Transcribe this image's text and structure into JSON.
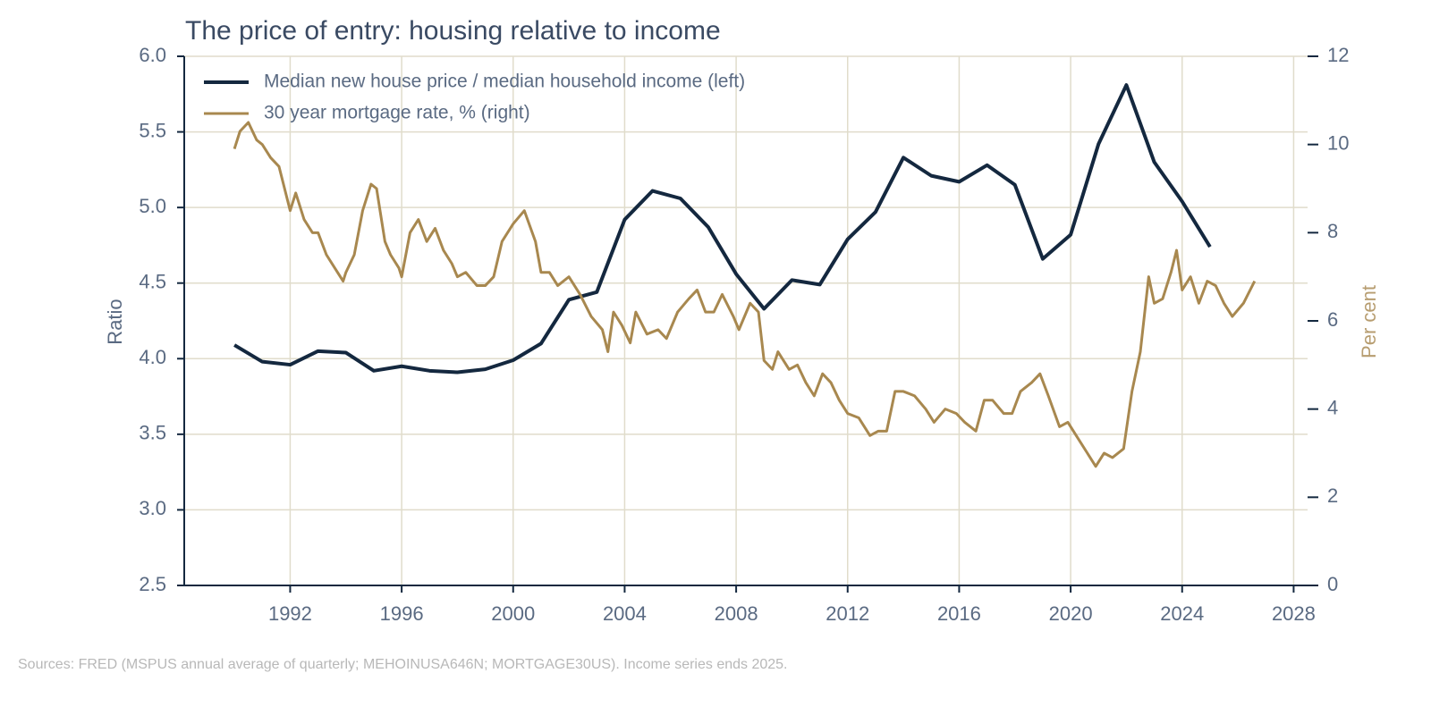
{
  "chart_data": {
    "type": "line",
    "title": "The price of entry: housing relative to income",
    "ylabel": "Ratio",
    "y2label": "Per cent",
    "footnote": "Sources: FRED (MSPUS annual average of quarterly; MEHOINUSA646N; MORTGAGE30US). Income series ends 2025.",
    "xlim": [
      1988.2,
      2028.5
    ],
    "xticks": [
      1992,
      1996,
      2000,
      2004,
      2008,
      2012,
      2016,
      2020,
      2024,
      2028
    ],
    "ylim": [
      2.5,
      6.0
    ],
    "yticks": [
      {
        "value": 2.5,
        "label": "2.5"
      },
      {
        "value": 3.0,
        "label": "3.0"
      },
      {
        "value": 3.5,
        "label": "3.5"
      },
      {
        "value": 4.0,
        "label": "4.0"
      },
      {
        "value": 4.5,
        "label": "4.5"
      },
      {
        "value": 5.0,
        "label": "5.0"
      },
      {
        "value": 5.5,
        "label": "5.5"
      },
      {
        "value": 6.0,
        "label": "6.0"
      }
    ],
    "y2lim": [
      0,
      12
    ],
    "y2ticks": [
      0,
      2,
      4,
      6,
      8,
      10,
      12
    ],
    "grid": true,
    "legend": "upper left",
    "series": [
      {
        "name": "Median new house price / median household income (left)",
        "color": "#14283f",
        "axis": "y",
        "x": [
          1990,
          1991,
          1992,
          1993,
          1994,
          1995,
          1996,
          1997,
          1998,
          1999,
          2000,
          2001,
          2002,
          2003,
          2004,
          2005,
          2006,
          2007,
          2008,
          2009,
          2010,
          2011,
          2012,
          2013,
          2014,
          2015,
          2016,
          2017,
          2018,
          2019,
          2020,
          2021,
          2022,
          2023,
          2024,
          2025
        ],
        "values": [
          4.09,
          3.98,
          3.96,
          4.05,
          4.04,
          3.92,
          3.95,
          3.92,
          3.91,
          3.93,
          3.99,
          4.1,
          4.39,
          4.44,
          4.92,
          5.11,
          5.06,
          4.87,
          4.56,
          4.33,
          4.52,
          4.49,
          4.79,
          4.97,
          5.33,
          5.21,
          5.17,
          5.28,
          5.15,
          4.66,
          4.82,
          5.42,
          5.81,
          5.3,
          5.04,
          4.74
        ]
      },
      {
        "name": "30 year mortgage rate, % (right)",
        "color": "#a8884f",
        "axis": "y2",
        "x": [
          1990.0,
          1990.2,
          1990.5,
          1990.8,
          1991.0,
          1991.3,
          1991.6,
          1992.0,
          1992.2,
          1992.5,
          1992.8,
          1993.0,
          1993.3,
          1993.6,
          1993.9,
          1994.0,
          1994.3,
          1994.6,
          1994.9,
          1995.1,
          1995.4,
          1995.6,
          1995.9,
          1996.0,
          1996.3,
          1996.6,
          1996.9,
          1997.2,
          1997.5,
          1997.8,
          1998.0,
          1998.3,
          1998.7,
          1999.0,
          1999.3,
          1999.6,
          2000.0,
          2000.4,
          2000.8,
          2001.0,
          2001.3,
          2001.6,
          2002.0,
          2002.4,
          2002.8,
          2003.2,
          2003.4,
          2003.6,
          2003.9,
          2004.2,
          2004.4,
          2004.8,
          2005.2,
          2005.5,
          2005.9,
          2006.3,
          2006.6,
          2006.9,
          2007.2,
          2007.5,
          2007.9,
          2008.1,
          2008.5,
          2008.8,
          2009.0,
          2009.3,
          2009.5,
          2009.9,
          2010.2,
          2010.5,
          2010.8,
          2011.1,
          2011.4,
          2011.7,
          2012.0,
          2012.4,
          2012.8,
          2013.1,
          2013.4,
          2013.7,
          2014.0,
          2014.4,
          2014.8,
          2015.1,
          2015.5,
          2015.9,
          2016.2,
          2016.6,
          2016.9,
          2017.2,
          2017.6,
          2017.9,
          2018.2,
          2018.6,
          2018.9,
          2019.2,
          2019.6,
          2019.9,
          2020.2,
          2020.6,
          2020.9,
          2021.2,
          2021.5,
          2021.9,
          2022.2,
          2022.5,
          2022.8,
          2023.0,
          2023.3,
          2023.6,
          2023.8,
          2024.0,
          2024.3,
          2024.6,
          2024.9,
          2025.2,
          2025.5,
          2025.8,
          2026.2,
          2026.6
        ],
        "values": [
          9.9,
          10.3,
          10.5,
          10.1,
          10.0,
          9.7,
          9.5,
          8.5,
          8.9,
          8.3,
          8.0,
          8.0,
          7.5,
          7.2,
          6.9,
          7.1,
          7.5,
          8.5,
          9.1,
          9.0,
          7.8,
          7.5,
          7.2,
          7.0,
          8.0,
          8.3,
          7.8,
          8.1,
          7.6,
          7.3,
          7.0,
          7.1,
          6.8,
          6.8,
          7.0,
          7.8,
          8.2,
          8.5,
          7.8,
          7.1,
          7.1,
          6.8,
          7.0,
          6.6,
          6.1,
          5.8,
          5.3,
          6.2,
          5.9,
          5.5,
          6.2,
          5.7,
          5.8,
          5.6,
          6.2,
          6.5,
          6.7,
          6.2,
          6.2,
          6.6,
          6.1,
          5.8,
          6.4,
          6.2,
          5.1,
          4.9,
          5.3,
          4.9,
          5.0,
          4.6,
          4.3,
          4.8,
          4.6,
          4.2,
          3.9,
          3.8,
          3.4,
          3.5,
          3.5,
          4.4,
          4.4,
          4.3,
          4.0,
          3.7,
          4.0,
          3.9,
          3.7,
          3.5,
          4.2,
          4.2,
          3.9,
          3.9,
          4.4,
          4.6,
          4.8,
          4.3,
          3.6,
          3.7,
          3.4,
          3.0,
          2.7,
          3.0,
          2.9,
          3.1,
          4.4,
          5.3,
          7.0,
          6.4,
          6.5,
          7.1,
          7.6,
          6.7,
          7.0,
          6.4,
          6.9,
          6.8,
          6.4,
          6.1,
          6.4,
          6.9
        ]
      }
    ]
  }
}
